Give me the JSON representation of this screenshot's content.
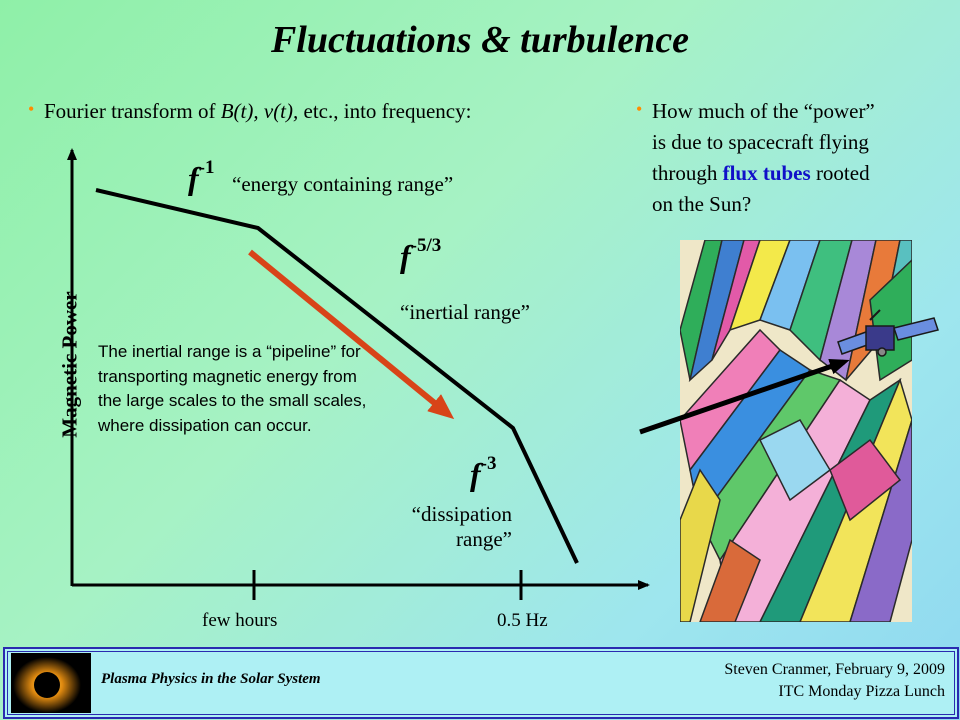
{
  "title": "Fluctuations & turbulence",
  "bullets": {
    "left": {
      "pre": "Fourier transform of ",
      "math1": "B(t), v(t),",
      "post": " etc., into frequency:"
    },
    "right": {
      "line1": "How much of the “power”",
      "line2": "is due to spacecraft flying",
      "line3_pre": "through ",
      "line3_highlight": "flux tubes",
      "line3_post": " rooted",
      "line4": "on the Sun?"
    }
  },
  "diagram": {
    "y_axis_label": "Magnetic Power",
    "segments": [
      {
        "f": "f",
        "exp": "-1",
        "label": "“energy containing range”"
      },
      {
        "f": "f",
        "exp": "-5/3",
        "label": "“inertial range”"
      },
      {
        "f": "f",
        "exp": "-3",
        "label_line1": "“dissipation",
        "label_line2": "range”"
      }
    ],
    "x_ticks": [
      "few hours",
      "0.5 Hz"
    ],
    "note": "The inertial range is a “pipeline” for transporting magnetic energy from the large scales to the small scales, where dissipation can occur.",
    "arrow_color": "#d84418"
  },
  "footer": {
    "course": "Plasma Physics in the Solar System",
    "author_line1": "Steven Cranmer,  February 9, 2009",
    "author_line2": "ITC Monday Pizza Lunch"
  }
}
